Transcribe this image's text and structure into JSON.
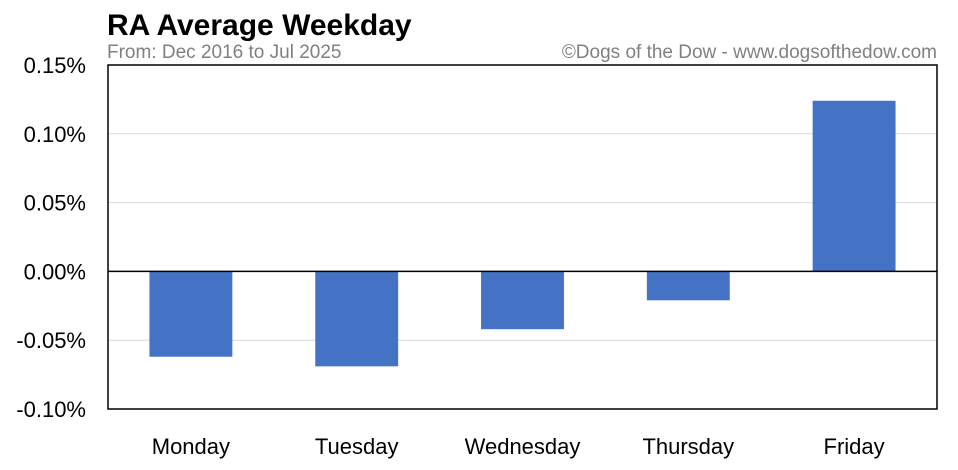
{
  "chart_data": {
    "type": "bar",
    "title": "RA Average Weekday",
    "subtitle": "From: Dec 2016 to Jul 2025",
    "credit": "©Dogs of the Dow - www.dogsofthedow.com",
    "xlabel": "",
    "ylabel": "",
    "categories": [
      "Monday",
      "Tuesday",
      "Wednesday",
      "Thursday",
      "Friday"
    ],
    "values": [
      -0.062,
      -0.069,
      -0.042,
      -0.021,
      0.124
    ],
    "y_unit": "%",
    "ylim": [
      -0.1,
      0.15
    ],
    "yticks": [
      -0.1,
      -0.05,
      0.0,
      0.05,
      0.1,
      0.15
    ],
    "ytick_labels": [
      "-0.10%",
      "-0.05%",
      "0.00%",
      "0.05%",
      "0.10%",
      "0.15%"
    ],
    "grid": true,
    "legend": "none",
    "colors": {
      "bar": "#4472c4",
      "grid": "#d9d9d9",
      "axis": "#000000",
      "title": "#000000",
      "subtitle": "#808080"
    }
  }
}
